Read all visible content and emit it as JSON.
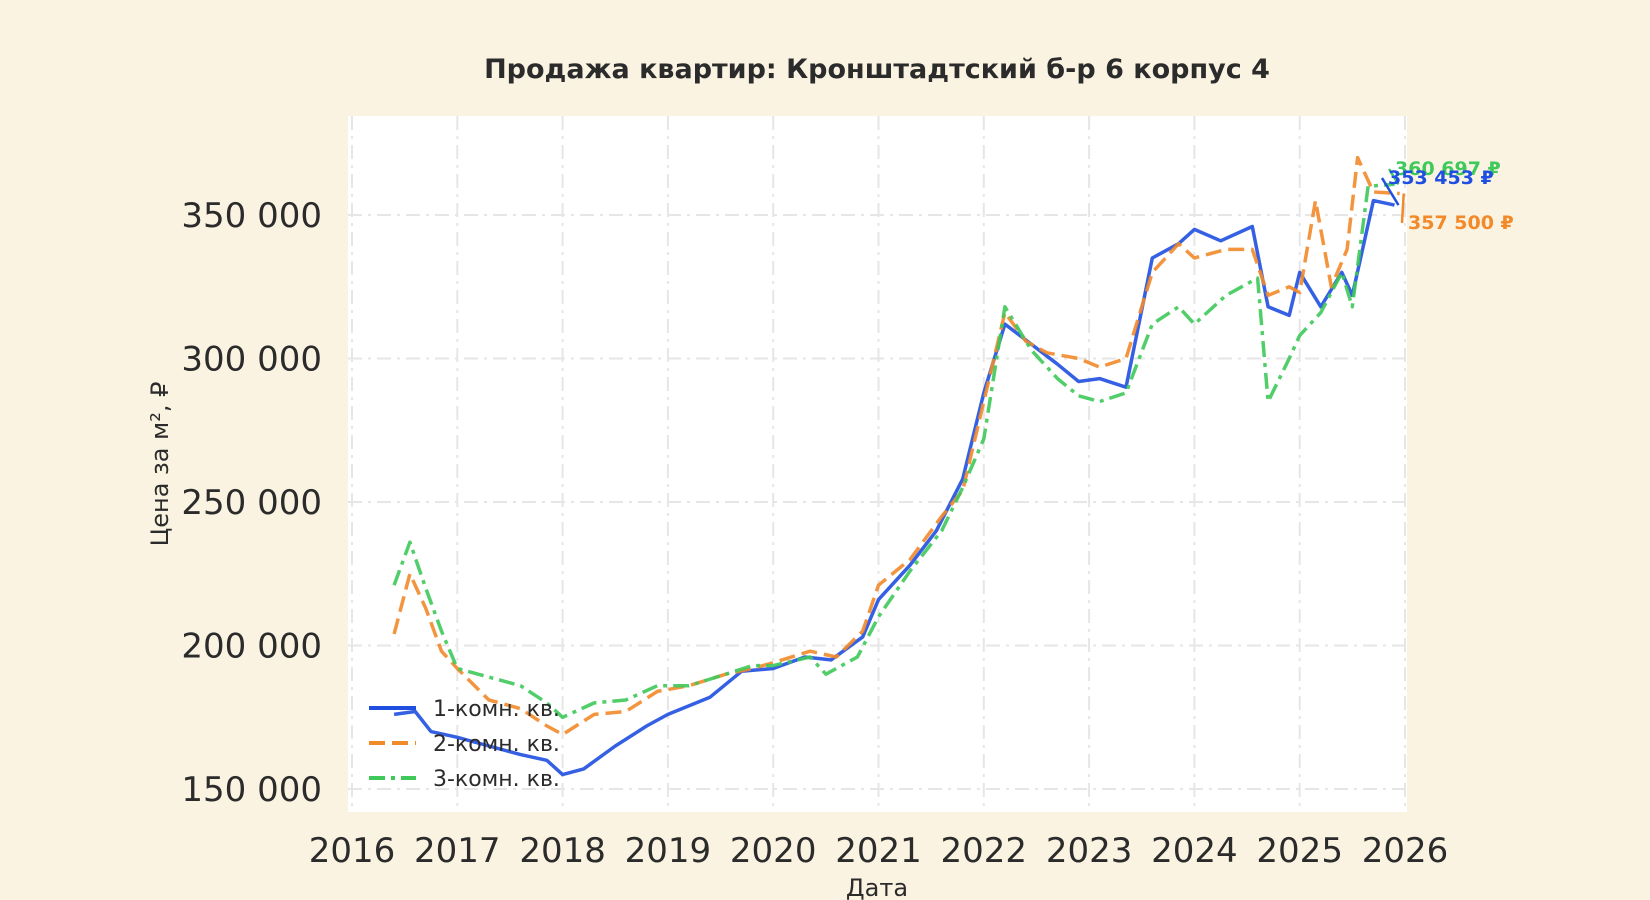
{
  "chart_data": {
    "type": "line",
    "title": "Продажа квартир: Кронштадтский б-р 6 корпус 4",
    "xlabel": "Дата",
    "ylabel": "Цена за м², ₽",
    "xlim": [
      2016.0,
      2026.0
    ],
    "ylim": [
      145000,
      380000
    ],
    "x_ticks": [
      2016,
      2017,
      2018,
      2019,
      2020,
      2021,
      2022,
      2023,
      2024,
      2025,
      2026
    ],
    "x_tick_labels": [
      "2016",
      "2017",
      "2018",
      "2019",
      "2020",
      "2021",
      "2022",
      "2023",
      "2024",
      "2025",
      "2026"
    ],
    "y_ticks": [
      150000,
      200000,
      250000,
      300000,
      350000
    ],
    "y_tick_labels": [
      "150 000",
      "200 000",
      "250 000",
      "300 000",
      "350 000"
    ],
    "grid": true,
    "legend_position": "bottom-left",
    "series": [
      {
        "name": "1-комн. кв.",
        "color": "#1f4fe0",
        "style": "solid",
        "x": [
          2016.4,
          2016.6,
          2016.75,
          2017.0,
          2017.3,
          2017.6,
          2017.85,
          2018.0,
          2018.2,
          2018.5,
          2018.8,
          2019.0,
          2019.4,
          2019.7,
          2020.0,
          2020.3,
          2020.55,
          2020.85,
          2021.0,
          2021.3,
          2021.55,
          2021.8,
          2022.0,
          2022.2,
          2022.45,
          2022.7,
          2022.9,
          2023.1,
          2023.35,
          2023.6,
          2023.85,
          2024.0,
          2024.25,
          2024.55,
          2024.7,
          2024.9,
          2025.0,
          2025.2,
          2025.4,
          2025.5,
          2025.7,
          2025.9
        ],
        "y": [
          176000,
          177000,
          170000,
          168000,
          165000,
          162000,
          160000,
          155000,
          157000,
          165000,
          172000,
          176000,
          182000,
          191000,
          192000,
          196000,
          195000,
          203000,
          216000,
          228000,
          240000,
          258000,
          288000,
          312000,
          305000,
          298000,
          292000,
          293000,
          290000,
          335000,
          340000,
          345000,
          341000,
          346000,
          318000,
          315000,
          330000,
          318000,
          330000,
          322000,
          355000,
          353453
        ]
      },
      {
        "name": "2-комн. кв.",
        "color": "#f28a2a",
        "style": "dashed",
        "x": [
          2016.4,
          2016.55,
          2016.7,
          2016.85,
          2017.0,
          2017.3,
          2017.6,
          2017.85,
          2018.0,
          2018.3,
          2018.6,
          2018.9,
          2019.2,
          2019.55,
          2019.8,
          2020.0,
          2020.35,
          2020.6,
          2020.85,
          2021.0,
          2021.3,
          2021.6,
          2021.8,
          2022.0,
          2022.2,
          2022.4,
          2022.6,
          2022.9,
          2023.1,
          2023.35,
          2023.6,
          2023.85,
          2024.0,
          2024.3,
          2024.55,
          2024.7,
          2024.9,
          2025.0,
          2025.15,
          2025.3,
          2025.45,
          2025.55,
          2025.7,
          2025.95
        ],
        "y": [
          204000,
          225000,
          213000,
          198000,
          192000,
          181000,
          178000,
          172000,
          169000,
          176000,
          177000,
          184000,
          186000,
          190000,
          192000,
          194000,
          198000,
          196000,
          205000,
          221000,
          230000,
          245000,
          254000,
          285000,
          316000,
          306000,
          302000,
          300000,
          297000,
          300000,
          330000,
          340000,
          335000,
          338000,
          338000,
          322000,
          325000,
          323000,
          355000,
          325000,
          338000,
          370000,
          358000,
          357500
        ]
      },
      {
        "name": "3-комн. кв.",
        "color": "#3ec95a",
        "style": "dashdot",
        "x": [
          2016.4,
          2016.55,
          2016.7,
          2016.85,
          2017.0,
          2017.3,
          2017.6,
          2017.85,
          2018.0,
          2018.3,
          2018.6,
          2018.9,
          2019.2,
          2019.55,
          2019.8,
          2020.0,
          2020.35,
          2020.5,
          2020.8,
          2021.0,
          2021.3,
          2021.6,
          2021.8,
          2022.0,
          2022.2,
          2022.45,
          2022.7,
          2022.9,
          2023.1,
          2023.35,
          2023.6,
          2023.85,
          2024.0,
          2024.3,
          2024.6,
          2024.7,
          2024.9,
          2025.0,
          2025.2,
          2025.4,
          2025.5,
          2025.65,
          2025.9
        ],
        "y": [
          221000,
          236000,
          220000,
          205000,
          192000,
          189000,
          186000,
          180000,
          175000,
          180000,
          181000,
          186000,
          186000,
          190000,
          193000,
          193000,
          196000,
          190000,
          196000,
          210000,
          226000,
          240000,
          255000,
          272000,
          318000,
          303000,
          293000,
          287000,
          285000,
          288000,
          312000,
          318000,
          312000,
          322000,
          328000,
          285000,
          300000,
          308000,
          316000,
          330000,
          318000,
          360000,
          360697
        ]
      }
    ],
    "annotations": [
      {
        "text": "360 697 ₽",
        "series": "3-комн. кв."
      },
      {
        "text": "353 453 ₽",
        "series": "1-комн. кв."
      },
      {
        "text": "357 500 ₽",
        "series": "2-комн. кв."
      }
    ]
  }
}
